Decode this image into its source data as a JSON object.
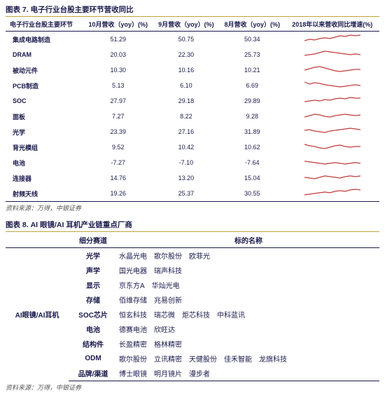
{
  "table7": {
    "title": "图表 7. 电子行业台股主要环节营收同比",
    "source": "资料来源：万得，中银证券",
    "columns": [
      "电子行业台股主要环节",
      "10月营收（yoy）(%)",
      "9月营收（yoy）(%)",
      "8月营收（yoy）(%)",
      "2018年以来营收同比增速(%)"
    ],
    "spark_color": "#c23b3b",
    "rows": [
      {
        "name": "集成电路制造",
        "v": [
          51.29,
          50.75,
          50.34
        ],
        "spark": [
          2,
          4,
          3,
          5,
          6,
          5,
          7,
          9,
          8,
          10,
          9,
          10
        ]
      },
      {
        "name": "DRAM",
        "v": [
          20.03,
          22.3,
          25.73
        ],
        "spark": [
          3,
          4,
          5,
          7,
          9,
          8,
          7,
          6,
          5,
          4,
          5,
          4
        ]
      },
      {
        "name": "被动元件",
        "v": [
          10.3,
          10.16,
          10.21
        ],
        "spark": [
          4,
          6,
          8,
          9,
          7,
          5,
          3,
          2,
          3,
          4,
          5,
          5
        ]
      },
      {
        "name": "PCB制造",
        "v": [
          5.13,
          6.1,
          6.69
        ],
        "spark": [
          9,
          6,
          8,
          7,
          5,
          4,
          3,
          2,
          3,
          4,
          5,
          4
        ]
      },
      {
        "name": "SOC",
        "v": [
          27.97,
          29.18,
          29.89
        ],
        "spark": [
          3,
          4,
          5,
          4,
          6,
          5,
          7,
          8,
          7,
          9,
          8,
          8
        ]
      },
      {
        "name": "面板",
        "v": [
          7.27,
          8.22,
          9.28
        ],
        "spark": [
          3,
          5,
          7,
          6,
          4,
          3,
          5,
          6,
          7,
          6,
          5,
          6
        ]
      },
      {
        "name": "光学",
        "v": [
          23.39,
          27.16,
          31.89
        ],
        "spark": [
          6,
          7,
          5,
          4,
          3,
          5,
          6,
          7,
          8,
          9,
          8,
          7
        ]
      },
      {
        "name": "背光模组",
        "v": [
          9.52,
          10.42,
          10.62
        ],
        "spark": [
          8,
          6,
          5,
          3,
          2,
          4,
          6,
          7,
          5,
          4,
          5,
          5
        ]
      },
      {
        "name": "电池",
        "v": [
          -7.27,
          -7.1,
          -7.64
        ],
        "spark": [
          6,
          5,
          4,
          3,
          2,
          3,
          4,
          3,
          2,
          3,
          4,
          3
        ]
      },
      {
        "name": "连接器",
        "v": [
          14.76,
          13.2,
          15.04
        ],
        "spark": [
          5,
          4,
          3,
          5,
          7,
          6,
          5,
          4,
          6,
          7,
          6,
          7
        ]
      },
      {
        "name": "射频天线",
        "v": [
          19.26,
          25.37,
          30.55
        ],
        "spark": [
          2,
          3,
          4,
          5,
          6,
          5,
          7,
          8,
          7,
          9,
          10,
          9
        ]
      }
    ]
  },
  "table8": {
    "title": "图表 8. AI 眼镜/AI 耳机产业链重点厂商",
    "source": "资料来源：万得，中银证券",
    "columns": [
      "",
      "细分赛道",
      "标的名称"
    ],
    "category": "AI眼镜/AI耳机",
    "rows": [
      {
        "sub": "光学",
        "targets": [
          "水晶光电",
          "歌尔股份",
          "欧菲光"
        ]
      },
      {
        "sub": "声学",
        "targets": [
          "国光电器",
          "瑞声科技"
        ]
      },
      {
        "sub": "显示",
        "targets": [
          "京东方A",
          "华灿光电"
        ]
      },
      {
        "sub": "存储",
        "targets": [
          "佰维存储",
          "兆易创新"
        ]
      },
      {
        "sub": "SOC芯片",
        "targets": [
          "恒玄科技",
          "瑞芯微",
          "炬芯科技",
          "中科蓝讯"
        ]
      },
      {
        "sub": "电池",
        "targets": [
          "德赛电池",
          "欣旺达"
        ]
      },
      {
        "sub": "结构件",
        "targets": [
          "长盈精密",
          "格林精密"
        ]
      },
      {
        "sub": "ODM",
        "targets": [
          "歌尔股份",
          "立讯精密",
          "天健股份",
          "佳禾智能",
          "龙旗科技"
        ]
      },
      {
        "sub": "品牌/渠道",
        "targets": [
          "博士眼镜",
          "明月镜片",
          "漫步者"
        ]
      }
    ]
  }
}
